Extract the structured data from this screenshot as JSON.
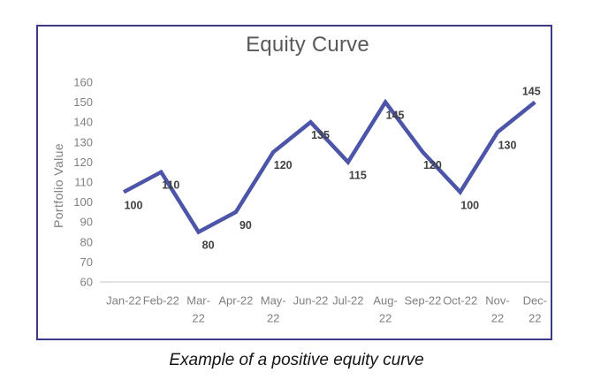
{
  "figure": {
    "caption": "Example of a positive equity curve"
  },
  "chart_data": {
    "type": "line",
    "title": "Equity Curve",
    "xlabel": "",
    "ylabel": "Portfolio Value",
    "categories": [
      "Jan-22",
      "Feb-22",
      "Mar-22",
      "Apr-22",
      "May-22",
      "Jun-22",
      "Jul-22",
      "Aug-22",
      "Sep-22",
      "Oct-22",
      "Nov-22",
      "Dec-22"
    ],
    "tick_label_lines": [
      [
        "Jan-22"
      ],
      [
        "Feb-22"
      ],
      [
        "Mar-",
        "22"
      ],
      [
        "Apr-22"
      ],
      [
        "May-",
        "22"
      ],
      [
        "Jun-22"
      ],
      [
        "Jul-22"
      ],
      [
        "Aug-",
        "22"
      ],
      [
        "Sep-22"
      ],
      [
        "Oct-22"
      ],
      [
        "Nov-",
        "22"
      ],
      [
        "Dec-",
        "22"
      ]
    ],
    "values": [
      100,
      110,
      80,
      90,
      120,
      135,
      115,
      145,
      120,
      100,
      130,
      145
    ],
    "data_labels_shown": true,
    "label_positions": [
      "below",
      "below",
      "below",
      "below",
      "below",
      "below",
      "below",
      "below",
      "below",
      "below",
      "below",
      "above"
    ],
    "ylim": [
      60,
      160
    ],
    "ytick_step": 10,
    "grid": false,
    "legend": "none",
    "colors": {
      "line": "#4c55a8",
      "data_label": "#404040",
      "axis_text": "#808080",
      "title_text": "#595959",
      "chart_border": "#3c3a85",
      "axis_line": "#d9d9d9"
    }
  }
}
